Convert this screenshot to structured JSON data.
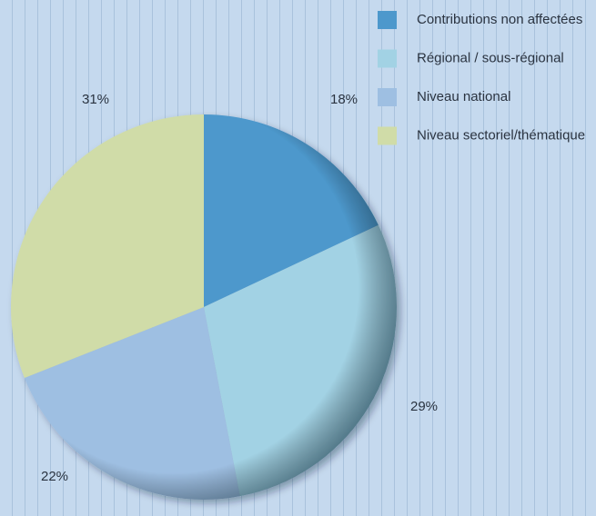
{
  "chart_data": {
    "type": "pie",
    "categories": [
      "Contributions non affectées",
      "Régional / sous-régional",
      "Niveau national",
      "Niveau sectoriel/thématique"
    ],
    "values": [
      18,
      29,
      22,
      31
    ],
    "value_labels": [
      "18%",
      "29%",
      "22%",
      "31%"
    ],
    "colors": [
      "#4d98cc",
      "#a2d2e4",
      "#9ebfe2",
      "#d0dca8"
    ],
    "legend": "top-right"
  }
}
